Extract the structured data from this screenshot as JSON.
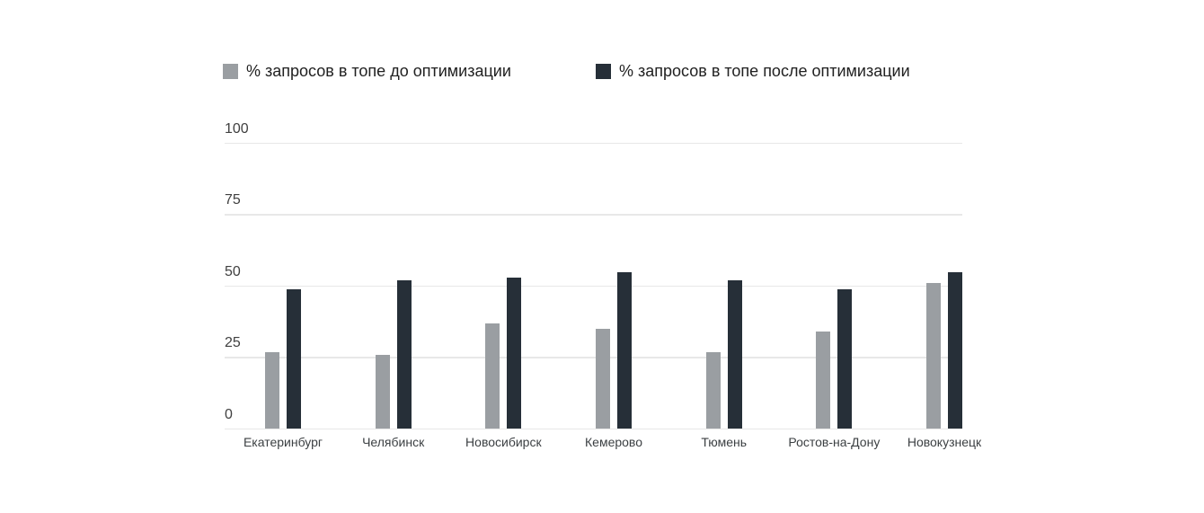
{
  "chart_data": {
    "type": "bar",
    "title": "",
    "categories": [
      "Екатеринбург",
      "Челябинск",
      "Новосибирск",
      "Кемерово",
      "Тюмень",
      "Ростов-на-Дону",
      "Новокузнецк"
    ],
    "series": [
      {
        "name": "% запросов в топе до оптимизации",
        "color": "#9a9ea2",
        "values": [
          27,
          26,
          37,
          35,
          27,
          34,
          51
        ]
      },
      {
        "name": "% запросов в топе после оптимизации",
        "color": "#262f38",
        "values": [
          49,
          52,
          53,
          55,
          52,
          49,
          55
        ]
      }
    ],
    "y_ticks": [
      0,
      25,
      50,
      75,
      100
    ],
    "ylim": [
      0,
      100
    ],
    "grid": true,
    "legend_position": "top",
    "xlabel": "",
    "ylabel": ""
  },
  "colors": {
    "background": "#ffffff",
    "gridline": "#e8e8e8",
    "axis_text": "#404040",
    "category_text": "#3c4043",
    "legend_text": "#212121",
    "series_before": "#9a9ea2",
    "series_after": "#262f38"
  }
}
